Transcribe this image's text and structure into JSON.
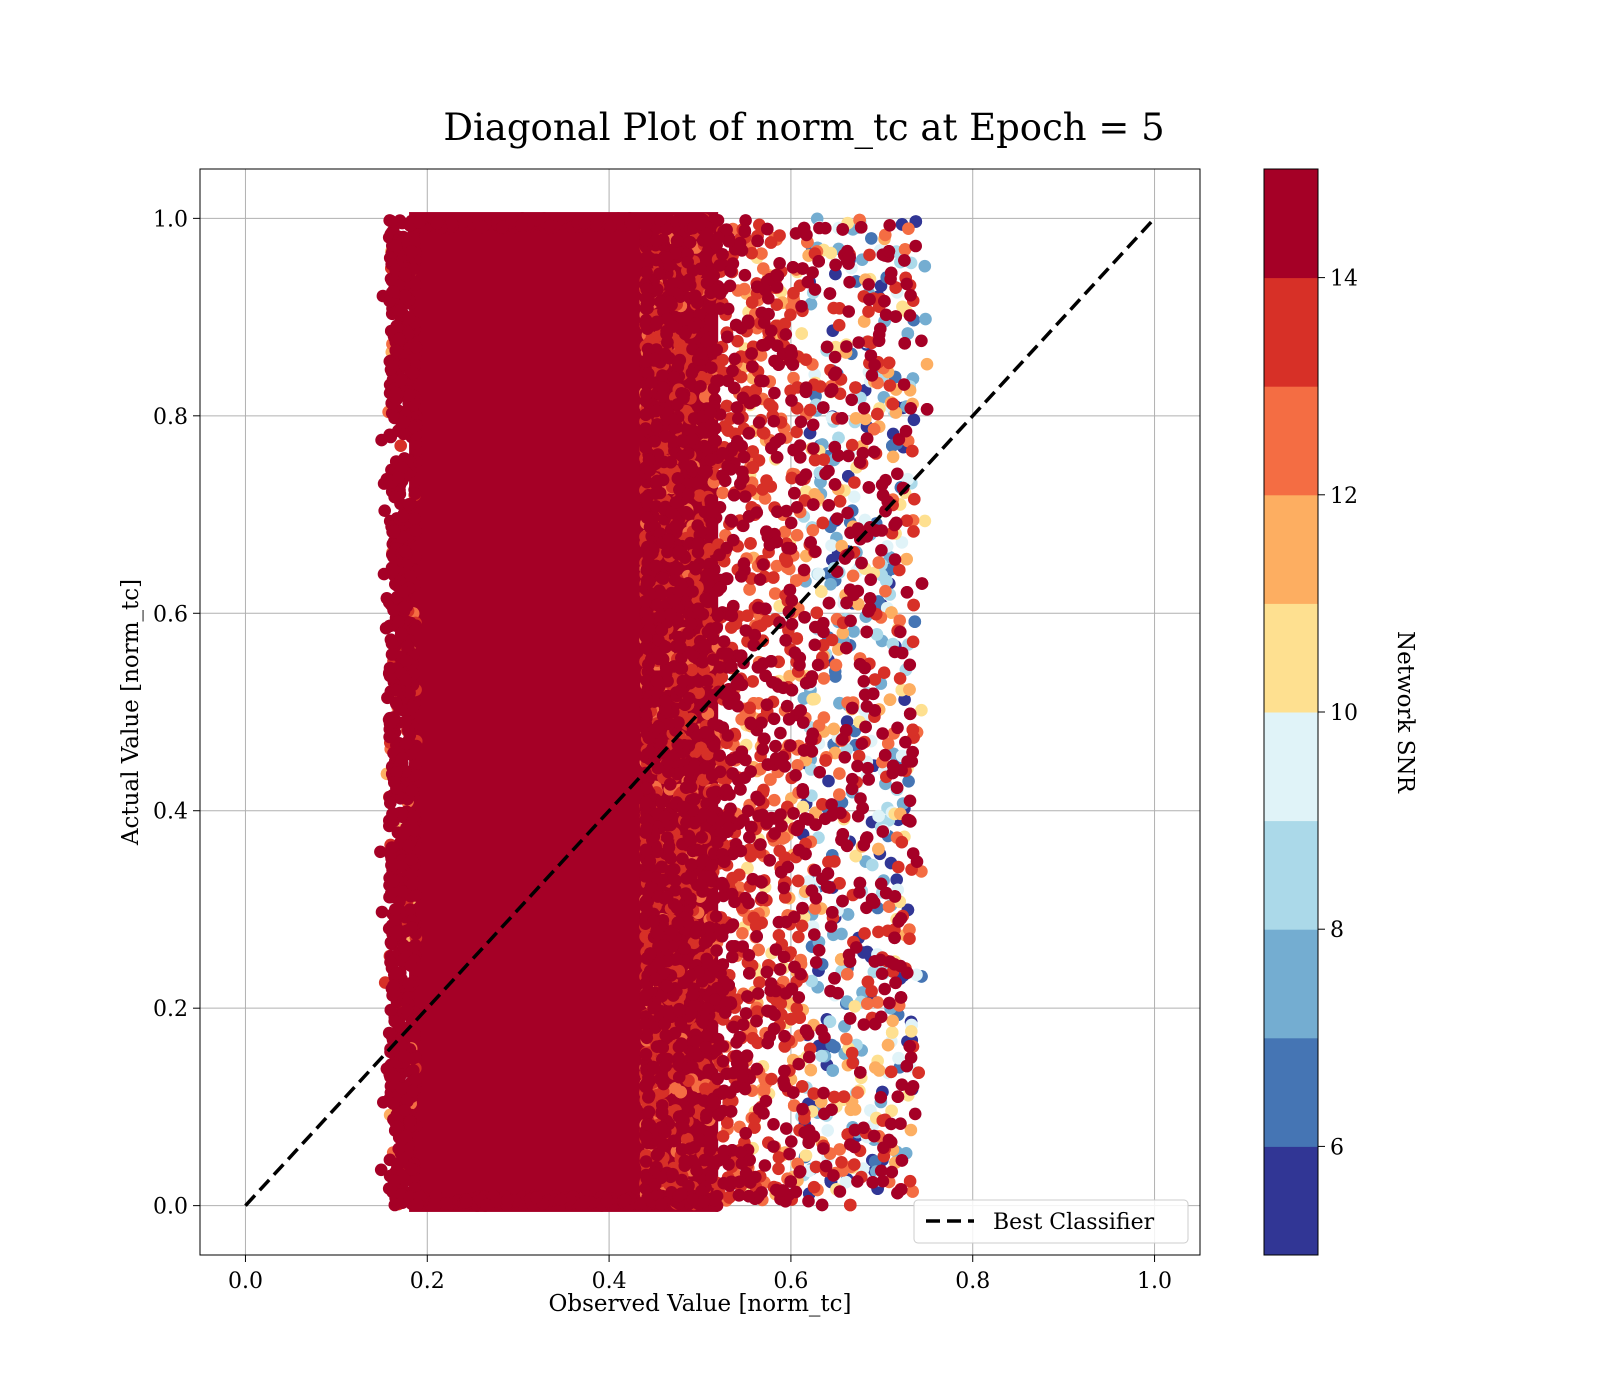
{
  "chart_data": {
    "type": "scatter",
    "title": "Diagonal Plot of norm_tc at Epoch = 5",
    "xlabel": "Observed Value [norm_tc]",
    "ylabel": "Actual Value [norm_tc]",
    "xlim": [
      -0.05,
      1.05
    ],
    "ylim": [
      -0.05,
      1.05
    ],
    "x_ticks": [
      "0.0",
      "0.2",
      "0.4",
      "0.6",
      "0.8",
      "1.0"
    ],
    "y_ticks": [
      "0.0",
      "0.2",
      "0.4",
      "0.6",
      "0.8",
      "1.0"
    ],
    "grid": true,
    "reference_line": {
      "name": "Best Classifier",
      "style": "dashed",
      "color": "#000000",
      "points": [
        [
          0.0,
          0.0
        ],
        [
          1.0,
          1.0
        ]
      ]
    },
    "legend": {
      "placement": "lower-right",
      "entries": [
        "Best Classifier"
      ]
    },
    "point_cloud": {
      "x_range": [
        0.16,
        0.75
      ],
      "y_range": [
        0.0,
        1.0
      ],
      "dense_core_x": [
        0.18,
        0.52
      ],
      "color_by": "Network SNR"
    },
    "colorbar": {
      "label": "Network SNR",
      "range": [
        5,
        15
      ],
      "tick_labels": [
        "6",
        "8",
        "10",
        "12",
        "14"
      ],
      "ticks": [
        6,
        8,
        10,
        12,
        14
      ],
      "band_colors": [
        "#313695",
        "#4575b4",
        "#74add1",
        "#abd9e9",
        "#e0f3f8",
        "#fee090",
        "#fdae61",
        "#f46d43",
        "#d73027",
        "#a50026"
      ]
    }
  }
}
